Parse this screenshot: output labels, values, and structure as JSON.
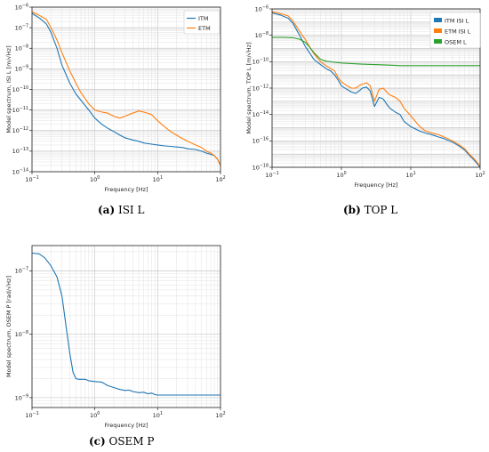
{
  "captions": [
    {
      "tag": "(a)",
      "text": "ISI L"
    },
    {
      "tag": "(b)",
      "text": "TOP L"
    },
    {
      "tag": "(c)",
      "text": "OSEM P"
    }
  ],
  "chart_data": [
    {
      "type": "line",
      "title": "",
      "xlabel": "Frequency [Hz]",
      "ylabel": "Model spectrum, ISI L [m/√Hz]",
      "xscale": "log",
      "yscale": "log",
      "xlim": [
        0.1,
        100
      ],
      "ylim": [
        1e-14,
        1e-06
      ],
      "xticks": [
        {
          "v": 0.1,
          "b": "10",
          "e": "−1"
        },
        {
          "v": 1,
          "b": "10",
          "e": "0"
        },
        {
          "v": 10,
          "b": "10",
          "e": "1"
        },
        {
          "v": 100,
          "b": "10",
          "e": "2"
        }
      ],
      "yticks": [
        {
          "v": 1e-14,
          "b": "10",
          "e": "−14"
        },
        {
          "v": 1e-13,
          "b": "10",
          "e": "−13"
        },
        {
          "v": 1e-12,
          "b": "10",
          "e": "−12"
        },
        {
          "v": 1e-11,
          "b": "10",
          "e": "−11"
        },
        {
          "v": 1e-10,
          "b": "10",
          "e": "−10"
        },
        {
          "v": 1e-09,
          "b": "10",
          "e": "−9"
        },
        {
          "v": 1e-08,
          "b": "10",
          "e": "−8"
        },
        {
          "v": 1e-07,
          "b": "10",
          "e": "−7"
        },
        {
          "v": 1e-06,
          "b": "10",
          "e": "−6"
        }
      ],
      "grid": true,
      "legend": "top-right",
      "series": [
        {
          "name": "ITM",
          "color": "#1f77b4",
          "x": [
            0.1,
            0.13,
            0.17,
            0.2,
            0.25,
            0.3,
            0.4,
            0.5,
            0.6,
            0.8,
            1.0,
            1.3,
            1.6,
            2,
            2.5,
            3,
            4,
            5,
            6,
            8,
            10,
            13,
            16,
            20,
            25,
            30,
            40,
            50,
            60,
            70,
            80,
            90,
            100
          ],
          "y": [
            5e-07,
            3e-07,
            1.5e-07,
            6e-08,
            1e-08,
            1.5e-09,
            2e-10,
            6e-11,
            3e-11,
            1e-11,
            4e-12,
            2e-12,
            1.3e-12,
            9e-13,
            6e-13,
            4.5e-13,
            3.5e-13,
            3e-13,
            2.5e-13,
            2.2e-13,
            2e-13,
            1.8e-13,
            1.7e-13,
            1.6e-13,
            1.5e-13,
            1.3e-13,
            1.2e-13,
            1e-13,
            8e-14,
            7e-14,
            6e-14,
            4e-14,
            2e-14
          ]
        },
        {
          "name": "ETM",
          "color": "#ff7f0e",
          "x": [
            0.1,
            0.13,
            0.17,
            0.2,
            0.25,
            0.3,
            0.4,
            0.5,
            0.6,
            0.8,
            1.0,
            1.3,
            1.6,
            2,
            2.5,
            3,
            4,
            5,
            6,
            8,
            10,
            13,
            16,
            20,
            25,
            30,
            40,
            50,
            60,
            70,
            80,
            90,
            100
          ],
          "y": [
            6e-07,
            4e-07,
            2.5e-07,
            1e-07,
            2.5e-08,
            6e-09,
            8e-10,
            2e-10,
            7e-11,
            2e-11,
            1e-11,
            8e-12,
            7e-12,
            5e-12,
            4e-12,
            5e-12,
            7e-12,
            9e-12,
            8e-12,
            6e-12,
            3e-12,
            1.5e-12,
            9e-13,
            6e-13,
            4e-13,
            3e-13,
            2e-13,
            1.5e-13,
            1e-13,
            8e-14,
            6e-14,
            4e-14,
            2e-14
          ]
        }
      ]
    },
    {
      "type": "line",
      "title": "",
      "xlabel": "Frequency [Hz]",
      "ylabel": "Model spectrum, TOP L [m/√Hz]",
      "xscale": "log",
      "yscale": "log",
      "xlim": [
        0.1,
        100
      ],
      "ylim": [
        1e-18,
        1e-06
      ],
      "xticks": [
        {
          "v": 0.1,
          "b": "10",
          "e": "−1"
        },
        {
          "v": 1,
          "b": "10",
          "e": "0"
        },
        {
          "v": 10,
          "b": "10",
          "e": "1"
        },
        {
          "v": 100,
          "b": "10",
          "e": "2"
        }
      ],
      "yticks": [
        {
          "v": 1e-18,
          "b": "10",
          "e": "−18"
        },
        {
          "v": 1e-16,
          "b": "10",
          "e": "−16"
        },
        {
          "v": 1e-14,
          "b": "10",
          "e": "−14"
        },
        {
          "v": 1e-12,
          "b": "10",
          "e": "−12"
        },
        {
          "v": 1e-10,
          "b": "10",
          "e": "−10"
        },
        {
          "v": 1e-08,
          "b": "10",
          "e": "−8"
        },
        {
          "v": 1e-06,
          "b": "10",
          "e": "−6"
        }
      ],
      "grid": true,
      "legend": "top-right",
      "series": [
        {
          "name": "ITM ISI L",
          "color": "#1f77b4",
          "x": [
            0.1,
            0.13,
            0.17,
            0.2,
            0.25,
            0.3,
            0.4,
            0.5,
            0.6,
            0.7,
            0.8,
            0.9,
            1.0,
            1.2,
            1.4,
            1.6,
            1.8,
            2.0,
            2.3,
            2.6,
            3,
            3.5,
            4,
            4.5,
            5,
            6,
            7,
            8,
            10,
            13,
            16,
            20,
            25,
            30,
            40,
            50,
            60,
            70,
            80,
            90,
            100
          ],
          "y": [
            5e-07,
            3.5e-07,
            2e-07,
            8e-08,
            1e-08,
            1.5e-09,
            1.5e-10,
            6e-11,
            3e-11,
            2e-11,
            1e-11,
            4e-12,
            1.5e-12,
            8e-13,
            5e-13,
            4e-13,
            6e-13,
            1e-12,
            1.2e-12,
            6e-13,
            4e-14,
            2e-13,
            1.5e-13,
            6e-14,
            3e-14,
            1.5e-14,
            1e-14,
            3e-15,
            1.2e-15,
            6e-16,
            4e-16,
            3e-16,
            2e-16,
            1.5e-16,
            8e-17,
            4e-17,
            2e-17,
            8e-18,
            4e-18,
            2e-18,
            1e-18
          ]
        },
        {
          "name": "ETM ISI L",
          "color": "#ff7f0e",
          "x": [
            0.1,
            0.13,
            0.17,
            0.2,
            0.25,
            0.3,
            0.4,
            0.5,
            0.6,
            0.7,
            0.8,
            0.9,
            1.0,
            1.2,
            1.4,
            1.6,
            1.8,
            2.0,
            2.3,
            2.6,
            3,
            3.5,
            4,
            4.5,
            5,
            6,
            7,
            8,
            10,
            13,
            16,
            20,
            25,
            30,
            40,
            50,
            60,
            70,
            80,
            90,
            100
          ],
          "y": [
            6e-07,
            4.5e-07,
            3e-07,
            1.2e-07,
            2e-08,
            5e-09,
            4e-10,
            1e-10,
            5e-11,
            3e-11,
            2e-11,
            6e-12,
            3e-12,
            1.5e-12,
            1e-12,
            1e-12,
            1.5e-12,
            2e-12,
            2.5e-12,
            1.5e-12,
            1e-13,
            8e-13,
            1e-12,
            5e-13,
            3e-13,
            2e-13,
            1e-13,
            3e-14,
            8e-15,
            1.5e-15,
            6e-16,
            4e-16,
            3e-16,
            2e-16,
            1e-16,
            5e-17,
            2.5e-17,
            1e-17,
            5e-18,
            2.5e-18,
            1.2e-18
          ]
        },
        {
          "name": "OSEM L",
          "color": "#2ca02c",
          "x": [
            0.1,
            0.15,
            0.2,
            0.25,
            0.3,
            0.35,
            0.4,
            0.5,
            0.6,
            0.8,
            1.0,
            1.5,
            2,
            3,
            5,
            7,
            10,
            20,
            50,
            100
          ],
          "y": [
            7e-09,
            7e-09,
            6.5e-09,
            5e-09,
            3e-09,
            1.2e-09,
            5e-10,
            1.5e-10,
            1.1e-10,
            9e-11,
            8e-11,
            7e-11,
            6.5e-11,
            6e-11,
            5.5e-11,
            5e-11,
            5e-11,
            5e-11,
            5e-11,
            5e-11
          ]
        }
      ]
    },
    {
      "type": "line",
      "title": "",
      "xlabel": "Frequency [Hz]",
      "ylabel": "Model spectrum, OSEM P [rad/√Hz]",
      "xscale": "log",
      "yscale": "log",
      "xlim": [
        0.1,
        100
      ],
      "ylim": [
        7e-10,
        2.5e-07
      ],
      "xticks": [
        {
          "v": 0.1,
          "b": "10",
          "e": "−1"
        },
        {
          "v": 1,
          "b": "10",
          "e": "0"
        },
        {
          "v": 10,
          "b": "10",
          "e": "1"
        },
        {
          "v": 100,
          "b": "10",
          "e": "2"
        }
      ],
      "yticks": [
        {
          "v": 1e-09,
          "b": "10",
          "e": "−9"
        },
        {
          "v": 1e-08,
          "b": "10",
          "e": "−8"
        },
        {
          "v": 1e-07,
          "b": "10",
          "e": "−7"
        }
      ],
      "grid": true,
      "legend": "none",
      "series": [
        {
          "name": "",
          "color": "#1f77b4",
          "x": [
            0.1,
            0.13,
            0.16,
            0.2,
            0.25,
            0.3,
            0.35,
            0.4,
            0.45,
            0.5,
            0.55,
            0.6,
            0.7,
            0.8,
            1.0,
            1.3,
            1.6,
            2,
            2.5,
            3,
            3.5,
            4,
            5,
            6,
            7,
            8,
            9,
            10,
            20,
            50,
            100
          ],
          "y": [
            1.9e-07,
            1.85e-07,
            1.6e-07,
            1.2e-07,
            8e-08,
            4e-08,
            1.3e-08,
            5e-09,
            2.5e-09,
            2e-09,
            1.95e-09,
            1.95e-09,
            1.95e-09,
            1.85e-09,
            1.8e-09,
            1.75e-09,
            1.55e-09,
            1.45e-09,
            1.35e-09,
            1.3e-09,
            1.32e-09,
            1.25e-09,
            1.2e-09,
            1.22e-09,
            1.15e-09,
            1.18e-09,
            1.12e-09,
            1.1e-09,
            1.1e-09,
            1.1e-09,
            1.1e-09
          ]
        }
      ]
    }
  ]
}
